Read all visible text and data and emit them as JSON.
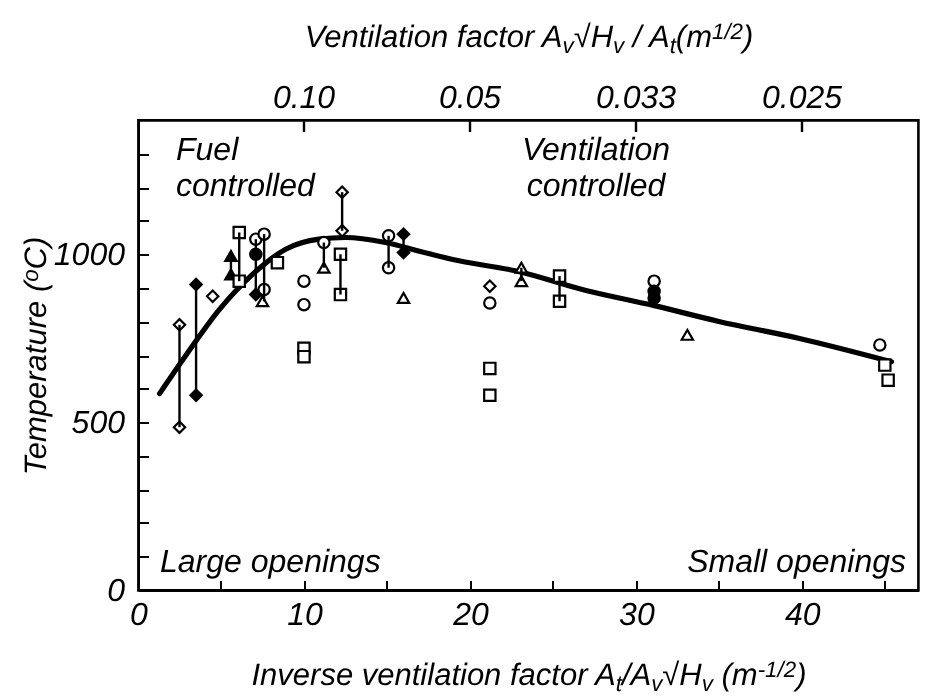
{
  "chart_data": {
    "type": "scatter",
    "xlabel": "Inverse ventilation factor A$_{t}$/A$_{v}$√H$_{v}$ (m$^{-1/2}$)",
    "ylabel": "Temperature ($^{o}$C)",
    "x2label": "Ventilation factor A$_{v}$√H$_{v}$ / A$_{t}$(m$^{1/2}$)",
    "xlim": [
      0,
      47
    ],
    "ylim": [
      0,
      1400
    ],
    "xticks": [
      0,
      {
        "value": 5,
        "label": null
      },
      10,
      {
        "value": 15,
        "label": null
      },
      20,
      {
        "value": 25,
        "label": null
      },
      30,
      {
        "value": 35,
        "label": null
      },
      40,
      {
        "value": 45,
        "label": null
      }
    ],
    "yticks": [
      0,
      {
        "value": 100,
        "label": null
      },
      {
        "value": 200,
        "label": null
      },
      {
        "value": 300,
        "label": null
      },
      {
        "value": 400,
        "label": null
      },
      500,
      {
        "value": 600,
        "label": null
      },
      {
        "value": 700,
        "label": null
      },
      {
        "value": 800,
        "label": null
      },
      {
        "value": 900,
        "label": null
      },
      1000,
      {
        "value": 1100,
        "label": null
      },
      {
        "value": 1200,
        "label": null
      },
      {
        "value": 1300,
        "label": null
      }
    ],
    "annotations": [
      "Fuel\ncontrolled",
      "Ventilation\ncontrolled",
      "Large openings",
      "Small openings",
      "0.10",
      "0.05",
      "0.033",
      "0.025"
    ],
    "series": [
      {
        "type": "line",
        "color": "#000000",
        "x": [
          1.3,
          2.9,
          4.9,
          6.9,
          8.9,
          10.9,
          12.5,
          14.9,
          16.9,
          18.9,
          22.8,
          27,
          31.1,
          35,
          39.8,
          45.4
        ],
        "values": [
          585,
          700,
          835,
          940,
          1015,
          1045,
          1050,
          1035,
          1010,
          985,
          950,
          892,
          847,
          800,
          750,
          680
        ]
      },
      {
        "color": "#ffffff",
        "marker": "diamond",
        "x": [
          2.5,
          2.5,
          4.5,
          12.3,
          12.3,
          21.2
        ],
        "values": [
          790,
          485,
          875,
          1185,
          1070,
          905
        ],
        "errors": [
          [
            485,
            790
          ],
          null,
          null,
          [
            1070,
            1185
          ],
          null,
          null
        ]
      },
      {
        "color": "#000000",
        "marker": "diamond",
        "x": [
          3.5,
          3.5,
          7.1,
          16.0,
          16.0
        ],
        "values": [
          910,
          580,
          880,
          1060,
          1005
        ],
        "errors": [
          [
            580,
            910
          ],
          null,
          null,
          [
            1005,
            1060
          ],
          null
        ]
      },
      {
        "color": "#000000",
        "marker": "triangle",
        "x": [
          5.6,
          5.6
        ],
        "values": [
          995,
          940
        ],
        "errors": [
          [
            940,
            995
          ],
          null
        ]
      },
      {
        "color": "#ffffff",
        "marker": "square",
        "x": [
          6.1,
          6.1,
          8.4,
          10.0,
          10.0,
          12.2,
          12.2,
          21.2,
          21.2,
          25.4,
          25.4,
          45.0,
          45.2
        ],
        "values": [
          1065,
          920,
          975,
          720,
          695,
          1000,
          880,
          660,
          580,
          935,
          860,
          670,
          625
        ],
        "errors": [
          [
            920,
            1065
          ],
          null,
          null,
          null,
          null,
          [
            880,
            1000
          ],
          null,
          null,
          null,
          [
            860,
            935
          ],
          null,
          null,
          null
        ]
      },
      {
        "color": "#ffffff",
        "marker": "circle",
        "x": [
          7.1,
          7.6,
          7.6,
          10.0,
          10.0,
          11.2,
          15.1,
          15.1,
          21.2,
          31.1,
          44.7
        ],
        "values": [
          1045,
          1060,
          895,
          920,
          850,
          1035,
          1055,
          960,
          855,
          920,
          730
        ],
        "errors": [
          [
            880,
            1045
          ],
          [
            860,
            1060
          ],
          null,
          null,
          null,
          [
            960,
            1035
          ],
          [
            960,
            1055
          ],
          null,
          null,
          null,
          null
        ]
      },
      {
        "color": "#000000",
        "marker": "circle",
        "x": [
          7.1,
          31.1,
          31.1
        ],
        "values": [
          1000,
          890,
          870
        ]
      },
      {
        "color": "#ffffff",
        "marker": "triangle",
        "x": [
          7.5,
          11.2,
          16.0,
          23.1,
          23.1,
          33.1
        ],
        "values": [
          860,
          960,
          870,
          960,
          920,
          760
        ],
        "errors": [
          null,
          null,
          null,
          [
            920,
            960
          ],
          null,
          null
        ]
      }
    ]
  }
}
